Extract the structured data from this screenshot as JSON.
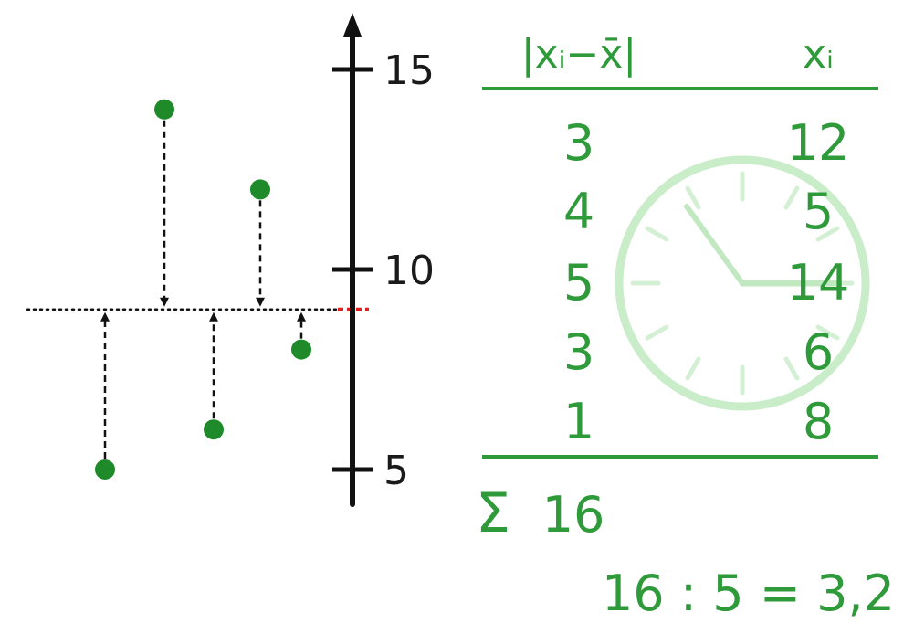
{
  "colors": {
    "green": "#2f9a3a",
    "dot": "#1f8a2a",
    "axis": "#111111",
    "mean_marker": "#e02020",
    "clock": "#c9ecc9"
  },
  "axis": {
    "min_visible": 4,
    "max_visible": 16.2,
    "ticks": [
      {
        "value": 15,
        "label": "15"
      },
      {
        "value": 10,
        "label": "10"
      },
      {
        "value": 5,
        "label": "5"
      }
    ]
  },
  "mean_value": 9,
  "points": [
    {
      "order": 1,
      "value": 5
    },
    {
      "order": 2,
      "value": 14
    },
    {
      "order": 3,
      "value": 6
    },
    {
      "order": 4,
      "value": 12
    },
    {
      "order": 5,
      "value": 8
    }
  ],
  "table": {
    "header_deviation": "|xᵢ−x̄|",
    "header_x": "xᵢ",
    "rows": [
      {
        "deviation": "3",
        "x": "12"
      },
      {
        "deviation": "4",
        "x": "5"
      },
      {
        "deviation": "5",
        "x": "14"
      },
      {
        "deviation": "3",
        "x": "6"
      },
      {
        "deviation": "1",
        "x": "8"
      }
    ],
    "sum_symbol": "Σ",
    "sum_value": "16",
    "result": "16 : 5 = 3,2"
  },
  "clock": {
    "icon": "clock-icon"
  }
}
